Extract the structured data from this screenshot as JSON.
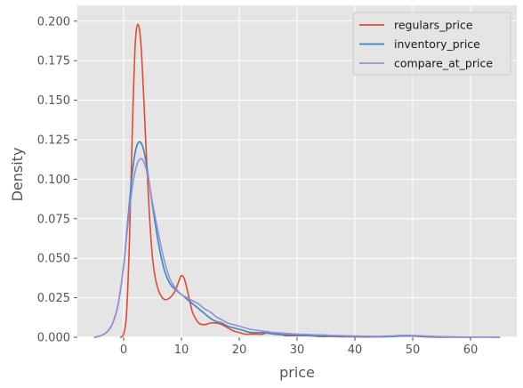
{
  "chart_data": {
    "type": "line",
    "title": "",
    "xlabel": "price",
    "ylabel": "Density",
    "xlim": [
      -8,
      68
    ],
    "ylim": [
      0,
      0.21
    ],
    "xticks": [
      0,
      10,
      20,
      30,
      40,
      50,
      60
    ],
    "xtick_labels": [
      "0",
      "10",
      "20",
      "30",
      "40",
      "50",
      "60"
    ],
    "yticks": [
      0,
      0.025,
      0.05,
      0.075,
      0.1,
      0.125,
      0.15,
      0.175,
      0.2
    ],
    "ytick_labels": [
      "0.000",
      "0.025",
      "0.050",
      "0.075",
      "0.100",
      "0.125",
      "0.150",
      "0.175",
      "0.200"
    ],
    "grid": true,
    "legend_position": "top-right",
    "background_color": "#e5e5e5",
    "grid_color": "#ffffff",
    "series": [
      {
        "name": "regulars_price",
        "color": "#e24a33",
        "x": [
          -0.5,
          0,
          0.5,
          1,
          1.5,
          2,
          2.5,
          3,
          3.5,
          4,
          4.5,
          5,
          5.5,
          6,
          6.5,
          7,
          7.5,
          8,
          8.5,
          9,
          9.5,
          10,
          10.5,
          11,
          11.5,
          12,
          13,
          14,
          15,
          16,
          17,
          18,
          19,
          20,
          21,
          22,
          23,
          24,
          25,
          26,
          27,
          28,
          29,
          30,
          32,
          34,
          36,
          38,
          40,
          42,
          44,
          46,
          48,
          50,
          52,
          54,
          56,
          58,
          60
        ],
        "y": [
          0.0,
          0.002,
          0.015,
          0.06,
          0.13,
          0.185,
          0.198,
          0.185,
          0.15,
          0.11,
          0.075,
          0.05,
          0.037,
          0.03,
          0.026,
          0.024,
          0.024,
          0.025,
          0.027,
          0.03,
          0.035,
          0.039,
          0.037,
          0.03,
          0.022,
          0.015,
          0.009,
          0.008,
          0.009,
          0.009,
          0.008,
          0.006,
          0.004,
          0.003,
          0.002,
          0.002,
          0.002,
          0.002,
          0.003,
          0.002,
          0.002,
          0.001,
          0.001,
          0.001,
          0.001,
          0.0005,
          0.0005,
          0.0003,
          0.0003,
          0.0002,
          0.0003,
          0.0006,
          0.001,
          0.0008,
          0.0003,
          0.0001,
          0.0,
          0.0,
          0.0
        ]
      },
      {
        "name": "inventory_price",
        "color": "#348abd",
        "x": [
          -5,
          -4,
          -3,
          -2,
          -1,
          0,
          0.5,
          1,
          1.5,
          2,
          2.5,
          3,
          3.5,
          4,
          4.5,
          5,
          6,
          7,
          8,
          9,
          10,
          11,
          12,
          13,
          14,
          15,
          16,
          17,
          18,
          19,
          20,
          22,
          24,
          26,
          28,
          30,
          32,
          34,
          36,
          38,
          40,
          42,
          44,
          46,
          48,
          50,
          52,
          54,
          56,
          58,
          60,
          62,
          64,
          65
        ],
        "y": [
          0.0,
          0.001,
          0.003,
          0.008,
          0.02,
          0.045,
          0.065,
          0.085,
          0.104,
          0.117,
          0.123,
          0.123,
          0.118,
          0.108,
          0.096,
          0.083,
          0.06,
          0.043,
          0.034,
          0.03,
          0.027,
          0.024,
          0.021,
          0.018,
          0.015,
          0.012,
          0.01,
          0.009,
          0.007,
          0.006,
          0.005,
          0.003,
          0.003,
          0.002,
          0.0015,
          0.0012,
          0.001,
          0.0008,
          0.0007,
          0.0006,
          0.0005,
          0.0004,
          0.0003,
          0.0004,
          0.0007,
          0.0008,
          0.0005,
          0.0003,
          0.0002,
          0.0001,
          0.0001,
          0.0001,
          0.0,
          0.0
        ]
      },
      {
        "name": "compare_at_price",
        "color": "#988ed5",
        "x": [
          -5,
          -4,
          -3,
          -2,
          -1,
          0,
          0.5,
          1,
          1.5,
          2,
          2.5,
          3,
          3.5,
          4,
          4.5,
          5,
          6,
          7,
          8,
          9,
          10,
          11,
          12,
          13,
          14,
          15,
          16,
          17,
          18,
          19,
          20,
          22,
          24,
          26,
          28,
          30,
          32,
          34,
          36,
          38,
          40,
          42,
          44,
          46,
          48,
          50,
          52,
          54,
          56,
          58,
          60,
          62,
          64,
          65
        ],
        "y": [
          0.0,
          0.001,
          0.003,
          0.008,
          0.02,
          0.045,
          0.063,
          0.08,
          0.095,
          0.105,
          0.111,
          0.113,
          0.111,
          0.105,
          0.096,
          0.085,
          0.066,
          0.049,
          0.037,
          0.031,
          0.027,
          0.025,
          0.023,
          0.021,
          0.018,
          0.016,
          0.013,
          0.011,
          0.009,
          0.008,
          0.007,
          0.005,
          0.004,
          0.003,
          0.0025,
          0.002,
          0.0017,
          0.0015,
          0.0012,
          0.001,
          0.0008,
          0.0007,
          0.0006,
          0.0008,
          0.0012,
          0.0012,
          0.0008,
          0.0005,
          0.0003,
          0.0002,
          0.0001,
          0.0001,
          0.0,
          0.0
        ]
      }
    ]
  }
}
